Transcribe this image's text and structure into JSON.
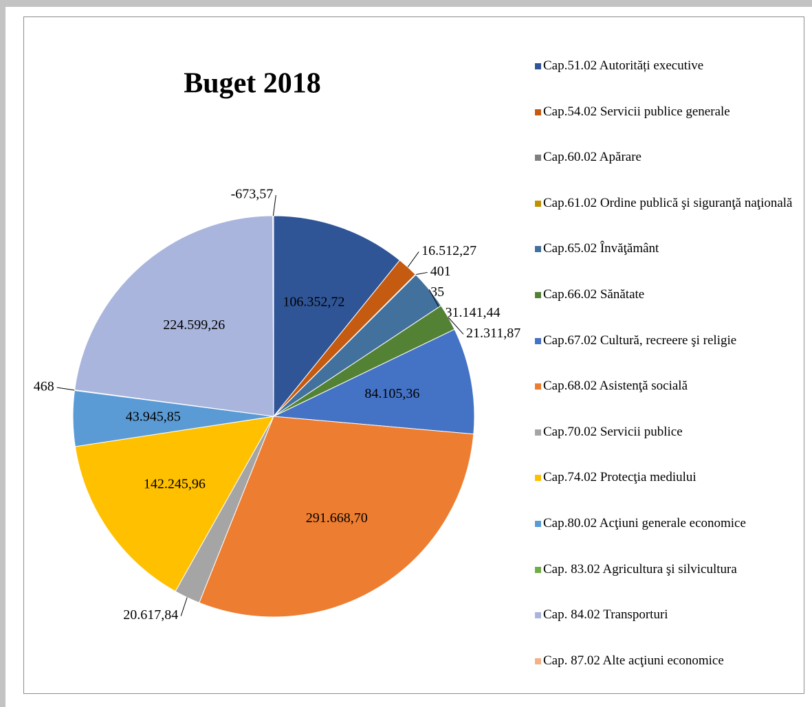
{
  "chart_data": {
    "type": "pie",
    "title": "Buget 2018",
    "categories": [
      "Cap.51.02 Autorități executive",
      "Cap.54.02 Servicii publice generale",
      "Cap.60.02 Apărare",
      "Cap.61.02 Ordine publică şi siguranţă naţională",
      "Cap.65.02 Învăţământ",
      "Cap.66.02 Sănătate",
      "Cap.67.02 Cultură, recreere şi religie",
      "Cap.68.02 Asistenţă socială",
      "Cap.70.02 Servicii publice",
      "Cap.74.02 Protecţia mediului",
      "Cap.80.02 Acţiuni generale economice",
      "Cap. 83.02 Agricultura  şi silvicultura",
      "Cap. 84.02 Transporturi",
      "Cap. 87.02 Alte acţiuni economice"
    ],
    "values": [
      106352.72,
      16512.27,
      401,
      35,
      31141.44,
      21311.87,
      84105.36,
      291668.7,
      20617.84,
      142245.96,
      43945.85,
      468,
      224599.26,
      -673.57
    ],
    "value_labels": [
      "106.352,72",
      "16.512,27",
      "401",
      "35",
      "31.141,44",
      "21.311,87",
      "84.105,36",
      "291.668,70",
      "20.617,84",
      "142.245,96",
      "43.945,85",
      "468",
      "224.599,26",
      "-673,57"
    ],
    "colors": [
      "#2f5597",
      "#c55a11",
      "#7f7f7f",
      "#bf9000",
      "#41719c",
      "#548235",
      "#4472c4",
      "#ed7d31",
      "#a5a5a5",
      "#ffc000",
      "#5b9bd5",
      "#70ad47",
      "#a9b5dc",
      "#f4b183"
    ],
    "legend": "right"
  }
}
